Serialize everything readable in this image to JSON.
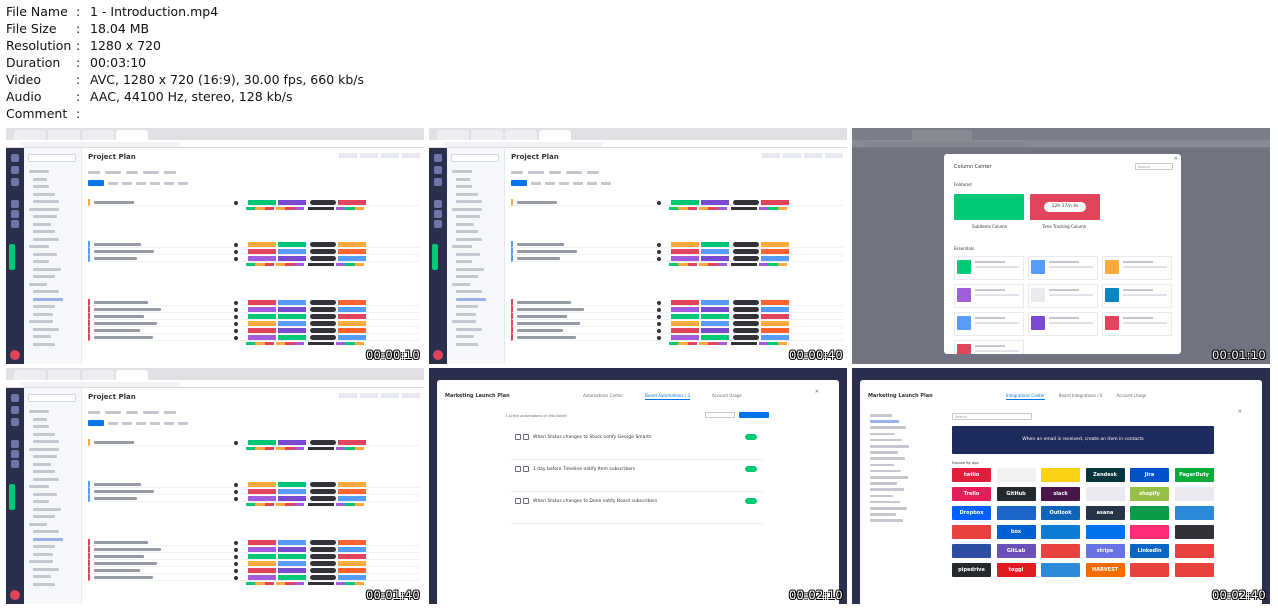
{
  "file_info": [
    {
      "key": "File Name",
      "value": "1 - Introduction.mp4"
    },
    {
      "key": "File Size",
      "value": "18.04 MB"
    },
    {
      "key": "Resolution",
      "value": "1280 x 720"
    },
    {
      "key": "Duration",
      "value": "00:03:10"
    },
    {
      "key": "Video",
      "value": "AVC, 1280 x 720 (16:9), 30.00 fps, 660 kb/s"
    },
    {
      "key": "Audio",
      "value": "AAC, 44100 Hz, stereo, 128 kb/s"
    },
    {
      "key": "Comment",
      "value": ""
    }
  ],
  "separator": ":",
  "thumbnails": [
    {
      "timestamp": "00:00:10",
      "page_title": "Project Plan"
    },
    {
      "timestamp": "00:00:40",
      "page_title": "Project Plan"
    },
    {
      "timestamp": "00:01:10",
      "modal_title": "Column Center",
      "featured_label": "Featured",
      "essentials_label": "Essentials",
      "feature_1": "Subitems Column",
      "feature_2": "Time Tracking Column",
      "timer_text": "12h 17m 4s",
      "search_placeholder": "Search"
    },
    {
      "timestamp": "00:01:40",
      "page_title": "Project Plan"
    },
    {
      "timestamp": "00:02:10",
      "board_title": "Marketing Launch Plan",
      "tabs": [
        "Automations Center",
        "Board Automations / 3",
        "Account Usage"
      ],
      "active_count": "3 Active automations on this board",
      "recipes": [
        "When Status changes to Stuck notify George Smarts",
        "1 day before Timeline notify Item subscribers",
        "When Status changes to Done notify Board subscribers"
      ]
    },
    {
      "timestamp": "00:02:40",
      "board_title": "Marketing Launch Plan",
      "tabs": [
        "Integrations Center",
        "Board Integrations / 0",
        "Account Usage"
      ],
      "search_placeholder": "Search",
      "banner": "When an email is received, create an item in contacts",
      "section_label": "Explore By App",
      "apps": [
        {
          "name": "twilio",
          "color": "#e31e3a"
        },
        {
          "name": "",
          "color": "#f1f1f1"
        },
        {
          "name": "",
          "color": "#fcd116"
        },
        {
          "name": "Zendesk",
          "color": "#03363d"
        },
        {
          "name": "Jira",
          "color": "#0052cc"
        },
        {
          "name": "PagerDuty",
          "color": "#06ac38"
        },
        {
          "name": "Trello",
          "color": "#e31e5a"
        },
        {
          "name": "GitHub",
          "color": "#24292e"
        },
        {
          "name": "slack",
          "color": "#4a154b"
        },
        {
          "name": "",
          "color": "#e8eaf0"
        },
        {
          "name": "shopify",
          "color": "#95bf47"
        },
        {
          "name": "",
          "color": "#e8eaf0"
        },
        {
          "name": "Dropbox",
          "color": "#0061ff"
        },
        {
          "name": "",
          "color": "#1b65c9"
        },
        {
          "name": "Outlook",
          "color": "#0f64b8"
        },
        {
          "name": "asana",
          "color": "#273347"
        },
        {
          "name": "",
          "color": "#0b9c4a"
        },
        {
          "name": "",
          "color": "#2c88d9"
        },
        {
          "name": "",
          "color": "#e8423f"
        },
        {
          "name": "box",
          "color": "#0061d5"
        },
        {
          "name": "",
          "color": "#0b7cd6"
        },
        {
          "name": "",
          "color": "#0073ea"
        },
        {
          "name": "",
          "color": "#ff2d78"
        },
        {
          "name": "",
          "color": "#323338"
        },
        {
          "name": "",
          "color": "#2d4fa1"
        },
        {
          "name": "GitLab",
          "color": "#6b4fbb"
        },
        {
          "name": "",
          "color": "#e8423f"
        },
        {
          "name": "stripe",
          "color": "#6772e5"
        },
        {
          "name": "LinkedIn",
          "color": "#0a66c2"
        },
        {
          "name": "",
          "color": "#e8423f"
        },
        {
          "name": "pipedrive",
          "color": "#26292c"
        },
        {
          "name": "toggl",
          "color": "#e01b22"
        },
        {
          "name": "",
          "color": "#2c88d9"
        },
        {
          "name": "HARVEST",
          "color": "#f36c00"
        },
        {
          "name": "",
          "color": "#e8423f"
        },
        {
          "name": "",
          "color": "#e8423f"
        }
      ]
    }
  ]
}
